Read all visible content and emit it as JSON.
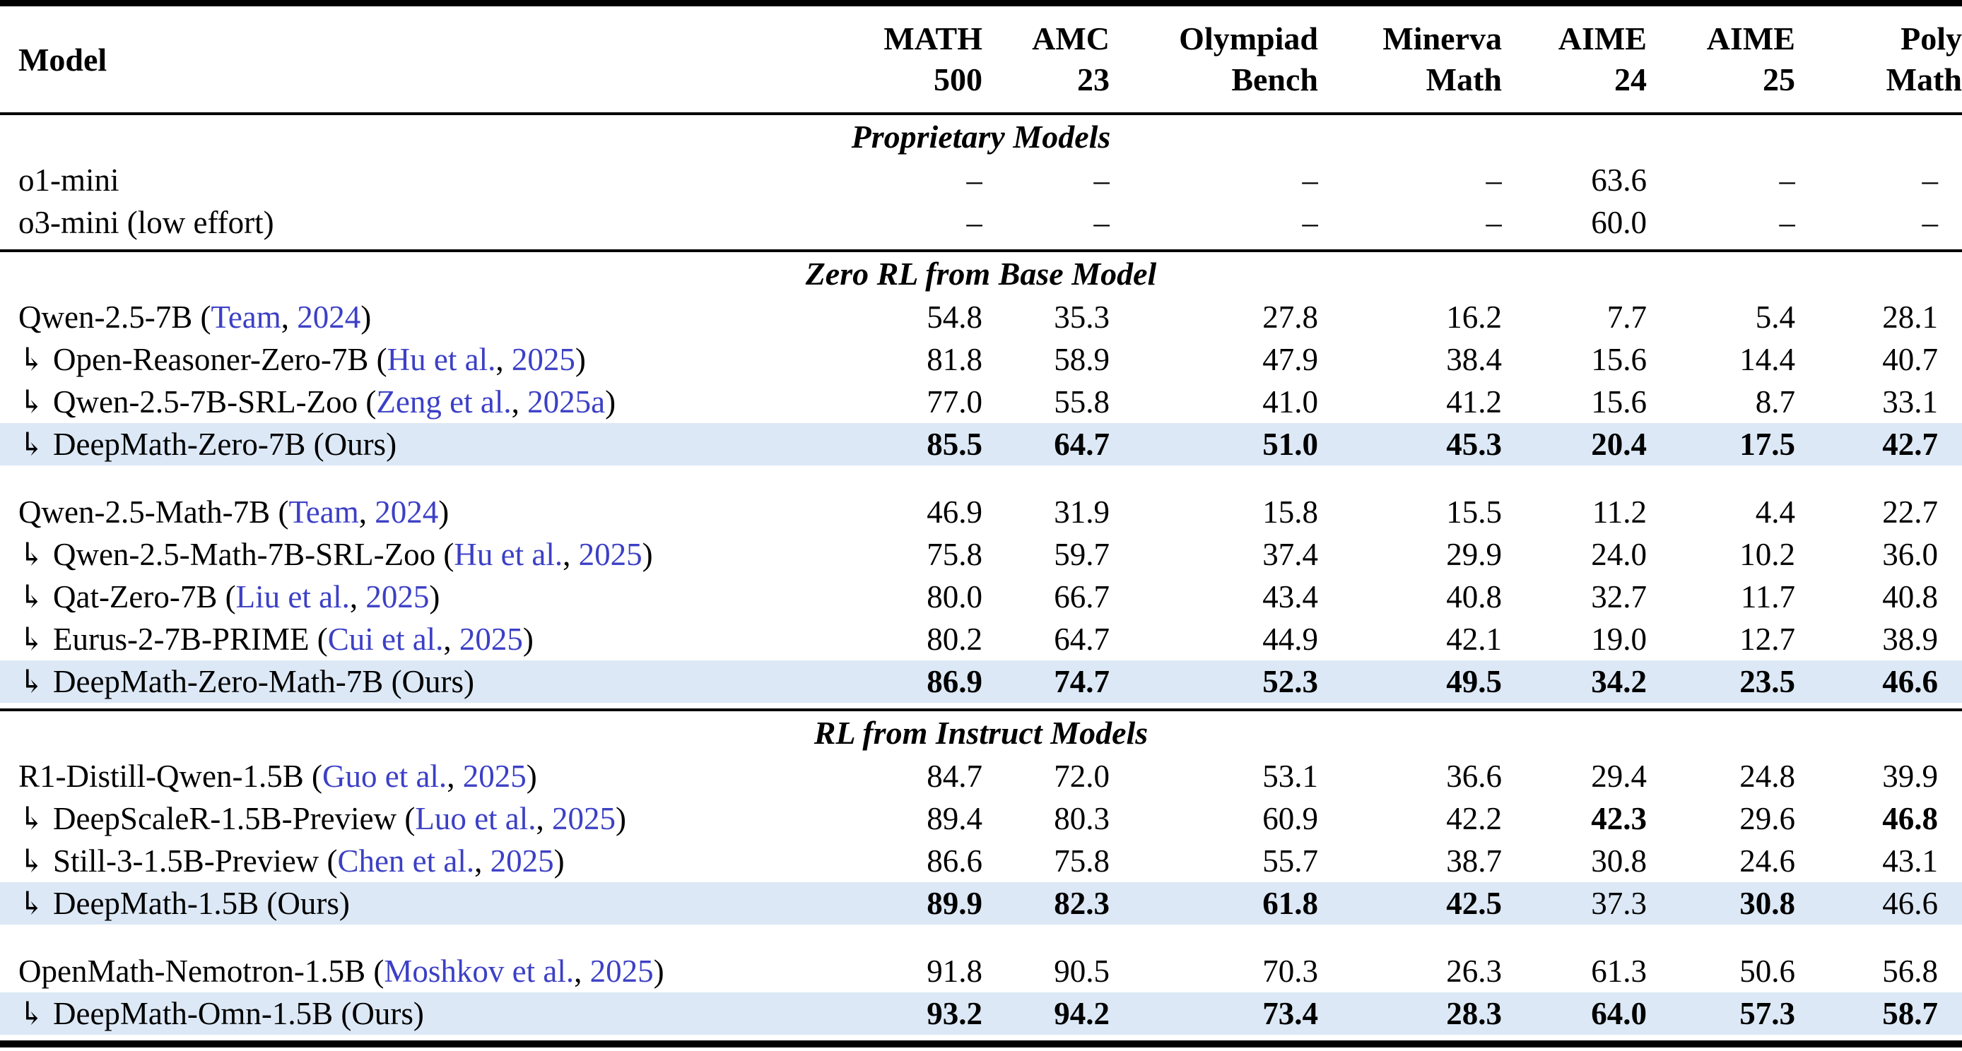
{
  "colors": {
    "highlight_row": "#dce8f5",
    "citation_link": "#3c40c5",
    "text": "#000000",
    "rule": "#000000"
  },
  "table": {
    "indent_glyph": "↳",
    "dash": "–",
    "columns": [
      {
        "l1": "Model",
        "l2": ""
      },
      {
        "l1": "MATH",
        "l2": "500"
      },
      {
        "l1": "AMC",
        "l2": "23"
      },
      {
        "l1": "Olympiad",
        "l2": "Bench"
      },
      {
        "l1": "Minerva",
        "l2": "Math"
      },
      {
        "l1": "AIME",
        "l2": "24"
      },
      {
        "l1": "AIME",
        "l2": "25"
      },
      {
        "l1": "Poly",
        "l2": "Math"
      }
    ],
    "sections": [
      {
        "title": "Proprietary Models",
        "groups": [
          {
            "rows": [
              {
                "indent": false,
                "highlight": false,
                "name": "o1-mini",
                "values": [
                  "–",
                  "–",
                  "–",
                  "–",
                  "63.6",
                  "–",
                  "–"
                ],
                "bold": []
              },
              {
                "indent": false,
                "highlight": false,
                "name": "o3-mini (low effort)",
                "values": [
                  "–",
                  "–",
                  "–",
                  "–",
                  "60.0",
                  "–",
                  "–"
                ],
                "bold": []
              }
            ]
          }
        ]
      },
      {
        "title": "Zero RL from Base Model",
        "groups": [
          {
            "rows": [
              {
                "indent": false,
                "highlight": false,
                "name": "Qwen-2.5-7B",
                "cite_author": "Team",
                "cite_year": "2024",
                "values": [
                  "54.8",
                  "35.3",
                  "27.8",
                  "16.2",
                  "7.7",
                  "5.4",
                  "28.1"
                ],
                "bold": []
              },
              {
                "indent": true,
                "highlight": false,
                "name": "Open-Reasoner-Zero-7B",
                "cite_author": "Hu et al.",
                "cite_year": "2025",
                "values": [
                  "81.8",
                  "58.9",
                  "47.9",
                  "38.4",
                  "15.6",
                  "14.4",
                  "40.7"
                ],
                "bold": []
              },
              {
                "indent": true,
                "highlight": false,
                "name": "Qwen-2.5-7B-SRL-Zoo",
                "cite_author": "Zeng et al.",
                "cite_year": "2025a",
                "values": [
                  "77.0",
                  "55.8",
                  "41.0",
                  "41.2",
                  "15.6",
                  "8.7",
                  "33.1"
                ],
                "bold": []
              },
              {
                "indent": true,
                "highlight": true,
                "name": "DeepMath-Zero-7B",
                "suffix": "(Ours)",
                "values": [
                  "85.5",
                  "64.7",
                  "51.0",
                  "45.3",
                  "20.4",
                  "17.5",
                  "42.7"
                ],
                "bold": [
                  0,
                  1,
                  2,
                  3,
                  4,
                  5,
                  6
                ]
              }
            ]
          },
          {
            "rows": [
              {
                "indent": false,
                "highlight": false,
                "name": "Qwen-2.5-Math-7B",
                "cite_author": "Team",
                "cite_year": "2024",
                "values": [
                  "46.9",
                  "31.9",
                  "15.8",
                  "15.5",
                  "11.2",
                  "4.4",
                  "22.7"
                ],
                "bold": []
              },
              {
                "indent": true,
                "highlight": false,
                "name": "Qwen-2.5-Math-7B-SRL-Zoo",
                "cite_author": "Hu et al.",
                "cite_year": "2025",
                "values": [
                  "75.8",
                  "59.7",
                  "37.4",
                  "29.9",
                  "24.0",
                  "10.2",
                  "36.0"
                ],
                "bold": []
              },
              {
                "indent": true,
                "highlight": false,
                "name": "Qat-Zero-7B",
                "cite_author": "Liu et al.",
                "cite_year": "2025",
                "values": [
                  "80.0",
                  "66.7",
                  "43.4",
                  "40.8",
                  "32.7",
                  "11.7",
                  "40.8"
                ],
                "bold": []
              },
              {
                "indent": true,
                "highlight": false,
                "name": "Eurus-2-7B-PRIME",
                "cite_author": "Cui et al.",
                "cite_year": "2025",
                "values": [
                  "80.2",
                  "64.7",
                  "44.9",
                  "42.1",
                  "19.0",
                  "12.7",
                  "38.9"
                ],
                "bold": []
              },
              {
                "indent": true,
                "highlight": true,
                "name": "DeepMath-Zero-Math-7B",
                "suffix": "(Ours)",
                "values": [
                  "86.9",
                  "74.7",
                  "52.3",
                  "49.5",
                  "34.2",
                  "23.5",
                  "46.6"
                ],
                "bold": [
                  0,
                  1,
                  2,
                  3,
                  4,
                  5,
                  6
                ]
              }
            ]
          }
        ]
      },
      {
        "title": "RL from Instruct Models",
        "groups": [
          {
            "rows": [
              {
                "indent": false,
                "highlight": false,
                "name": "R1-Distill-Qwen-1.5B",
                "cite_author": "Guo et al.",
                "cite_year": "2025",
                "values": [
                  "84.7",
                  "72.0",
                  "53.1",
                  "36.6",
                  "29.4",
                  "24.8",
                  "39.9"
                ],
                "bold": []
              },
              {
                "indent": true,
                "highlight": false,
                "name": "DeepScaleR-1.5B-Preview",
                "cite_author": "Luo et al.",
                "cite_year": "2025",
                "values": [
                  "89.4",
                  "80.3",
                  "60.9",
                  "42.2",
                  "42.3",
                  "29.6",
                  "46.8"
                ],
                "bold": [
                  4,
                  6
                ]
              },
              {
                "indent": true,
                "highlight": false,
                "name": "Still-3-1.5B-Preview",
                "cite_author": "Chen et al.",
                "cite_year": "2025",
                "values": [
                  "86.6",
                  "75.8",
                  "55.7",
                  "38.7",
                  "30.8",
                  "24.6",
                  "43.1"
                ],
                "bold": []
              },
              {
                "indent": true,
                "highlight": true,
                "name": "DeepMath-1.5B",
                "suffix": "(Ours)",
                "values": [
                  "89.9",
                  "82.3",
                  "61.8",
                  "42.5",
                  "37.3",
                  "30.8",
                  "46.6"
                ],
                "bold": [
                  0,
                  1,
                  2,
                  3,
                  5
                ]
              }
            ]
          },
          {
            "rows": [
              {
                "indent": false,
                "highlight": false,
                "name": "OpenMath-Nemotron-1.5B",
                "cite_author": "Moshkov et al.",
                "cite_year": "2025",
                "values": [
                  "91.8",
                  "90.5",
                  "70.3",
                  "26.3",
                  "61.3",
                  "50.6",
                  "56.8"
                ],
                "bold": []
              },
              {
                "indent": true,
                "highlight": true,
                "name": "DeepMath-Omn-1.5B",
                "suffix": "(Ours)",
                "values": [
                  "93.2",
                  "94.2",
                  "73.4",
                  "28.3",
                  "64.0",
                  "57.3",
                  "58.7"
                ],
                "bold": [
                  0,
                  1,
                  2,
                  3,
                  4,
                  5,
                  6
                ]
              }
            ]
          }
        ]
      }
    ]
  }
}
